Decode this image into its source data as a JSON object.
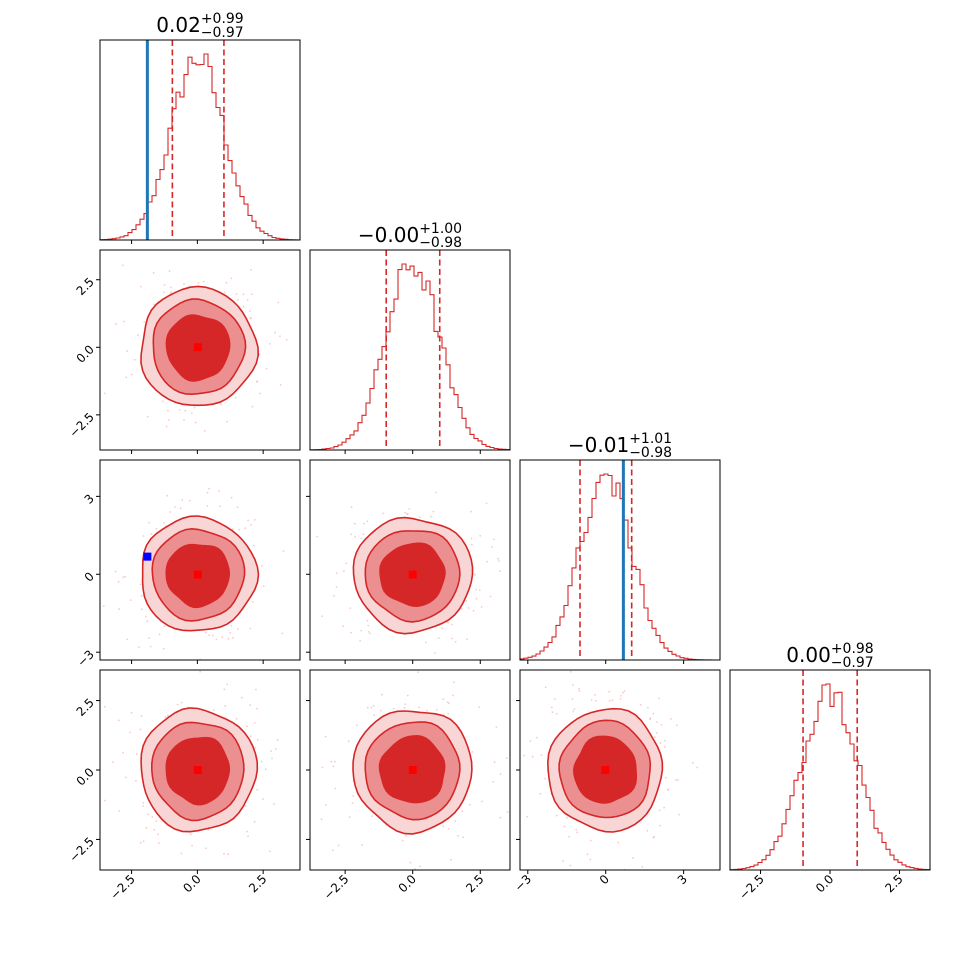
{
  "chart_data": {
    "type": "corner",
    "colors": {
      "hist": "#d62728",
      "quantile": "#d62728",
      "truth": "#1f77b4",
      "marker_median": "#ff0000",
      "marker_truth": "#0000ff",
      "contour_fill_inner": "#d62728",
      "contour_fill_mid": "#ec8f90",
      "contour_fill_outer": "#f9d6d6"
    },
    "parameters": [
      {
        "title_value": "0.02",
        "title_plus": "+0.99",
        "title_minus": "−0.97",
        "median": 0.02,
        "q_low": -0.95,
        "q_high": 1.01,
        "truth": -1.9,
        "range": [
          -3.7,
          3.9
        ],
        "ticks": [
          -2.5,
          0.0,
          2.5
        ],
        "tick_labels": [
          "−2.5",
          "0.0",
          "2.5"
        ]
      },
      {
        "title_value": "−0.00",
        "title_plus": "+1.00",
        "title_minus": "−0.98",
        "median": 0.0,
        "q_low": -0.98,
        "q_high": 1.0,
        "truth": null,
        "range": [
          -3.8,
          3.6
        ],
        "ticks": [
          -2.5,
          0.0,
          2.5
        ],
        "tick_labels": [
          "−2.5",
          "0.0",
          "2.5"
        ]
      },
      {
        "title_value": "−0.01",
        "title_plus": "+1.01",
        "title_minus": "−0.98",
        "median": -0.01,
        "q_low": -0.99,
        "q_high": 1.0,
        "truth": 0.68,
        "range": [
          -3.3,
          4.4
        ],
        "ticks": [
          -3,
          0,
          3
        ],
        "tick_labels": [
          "−3",
          "0",
          "3"
        ]
      },
      {
        "title_value": "0.00",
        "title_plus": "+0.98",
        "title_minus": "−0.97",
        "median": 0.0,
        "q_low": -0.97,
        "q_high": 0.98,
        "truth": null,
        "range": [
          -3.6,
          3.6
        ],
        "ticks": [
          -2.5,
          0.0,
          2.5
        ],
        "tick_labels": [
          "−2.5",
          "0.0",
          "2.5"
        ]
      }
    ],
    "truth_point_2d": {
      "x_param": 0,
      "y_param": 2,
      "x": -1.9,
      "y": 0.68
    }
  }
}
